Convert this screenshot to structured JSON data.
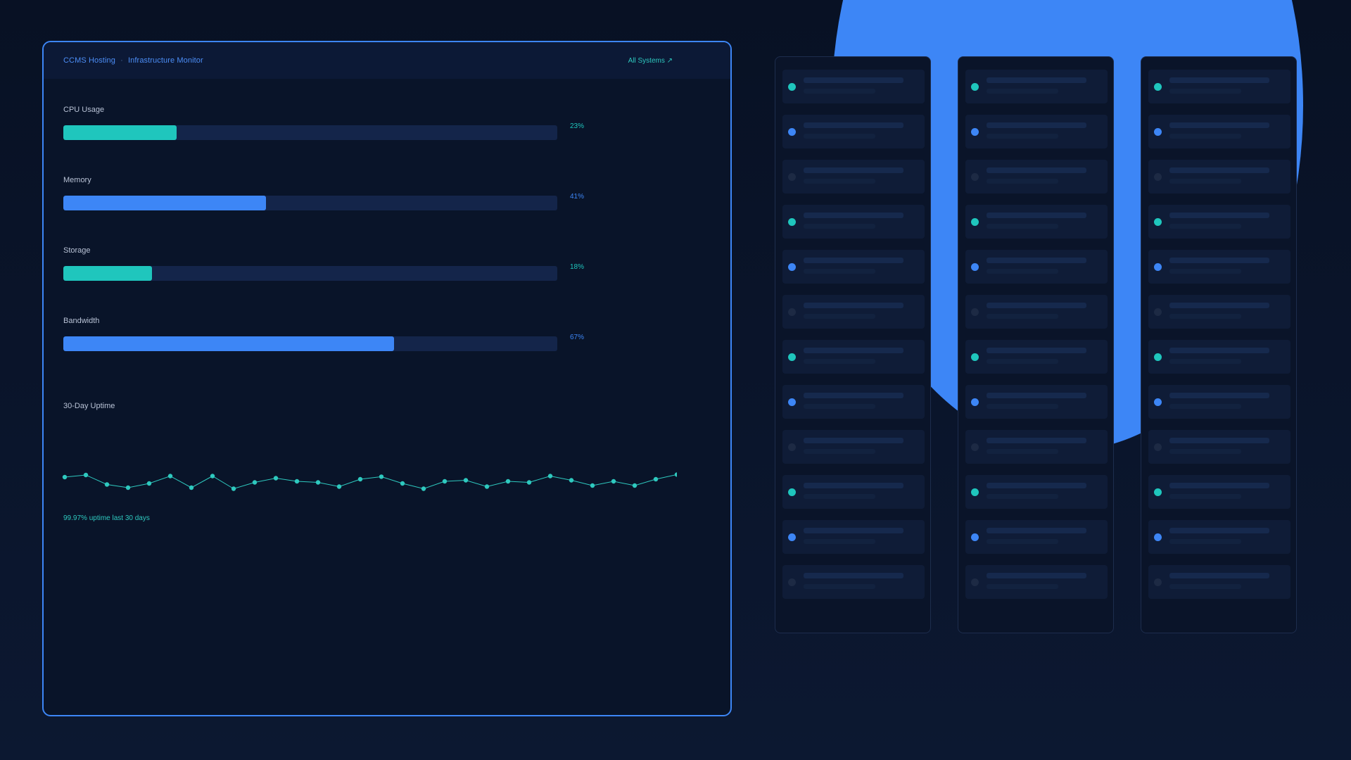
{
  "header": {
    "brand": "CCMS Hosting",
    "separator": "·",
    "title": "Infrastructure Monitor",
    "status_link": "All Systems ↗"
  },
  "metrics": [
    {
      "label": "CPU Usage",
      "value_text": "23%",
      "fraction": 0.23,
      "color": "#1fc6bd"
    },
    {
      "label": "Memory",
      "value_text": "41%",
      "fraction": 0.41,
      "color": "#3d86f6"
    },
    {
      "label": "Storage",
      "value_text": "18%",
      "fraction": 0.18,
      "color": "#1fc6bd"
    },
    {
      "label": "Bandwidth",
      "value_text": "67%",
      "fraction": 0.67,
      "color": "#3d86f6"
    }
  ],
  "uptime": {
    "label": "30-Day Uptime",
    "caption": "99.97% uptime last 30 days",
    "line_color": "#2ec9bf",
    "daily_levels": [
      0.8,
      0.9,
      0.45,
      0.3,
      0.5,
      0.85,
      0.3,
      0.85,
      0.25,
      0.55,
      0.75,
      0.6,
      0.55,
      0.35,
      0.7,
      0.82,
      0.5,
      0.25,
      0.6,
      0.65,
      0.35,
      0.6,
      0.55,
      0.85,
      0.65,
      0.4,
      0.6,
      0.4,
      0.7,
      0.92
    ]
  },
  "colors": {
    "accent_blue": "#3d86f6",
    "accent_teal": "#1fc6bd",
    "led_idle": "#1d2a44"
  },
  "racks": [
    {
      "name": "rack-1",
      "leds": [
        "teal",
        "blue",
        "idle",
        "teal",
        "blue",
        "idle",
        "teal",
        "blue",
        "idle",
        "teal",
        "blue",
        "idle"
      ]
    },
    {
      "name": "rack-2",
      "leds": [
        "teal",
        "blue",
        "idle",
        "teal",
        "blue",
        "idle",
        "teal",
        "blue",
        "idle",
        "teal",
        "blue",
        "idle"
      ]
    },
    {
      "name": "rack-3",
      "leds": [
        "teal",
        "blue",
        "idle",
        "teal",
        "blue",
        "idle",
        "teal",
        "blue",
        "idle",
        "teal",
        "blue",
        "idle"
      ]
    }
  ]
}
